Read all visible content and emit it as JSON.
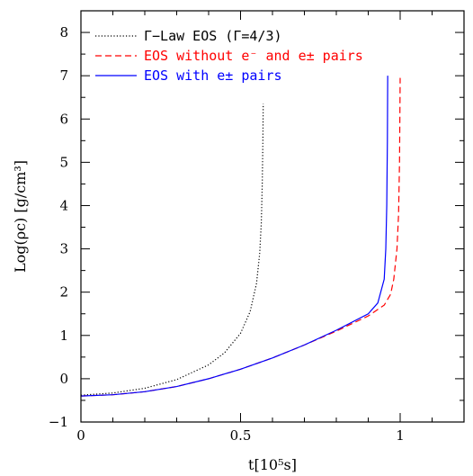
{
  "chart_data": {
    "type": "line",
    "xlabel": "t[10⁵s]",
    "ylabel": "Log(ρc) [g/cm³]",
    "xlim": [
      0,
      1.2
    ],
    "ylim": [
      -1,
      8.5
    ],
    "x_ticks": [
      0,
      0.5,
      1
    ],
    "x_tick_labels": [
      "0",
      "0.5",
      "1"
    ],
    "y_ticks": [
      -1,
      0,
      1,
      2,
      3,
      4,
      5,
      6,
      7,
      8
    ],
    "y_tick_labels": [
      "−1",
      "0",
      "1",
      "2",
      "3",
      "4",
      "5",
      "6",
      "7",
      "8"
    ],
    "grid": false,
    "legend_position": "top-left",
    "series": [
      {
        "name": "Γ−Law EOS (Γ=4/3)",
        "color": "#000000",
        "style": "dotted",
        "x": [
          0,
          0.1,
          0.2,
          0.3,
          0.4,
          0.45,
          0.5,
          0.53,
          0.55,
          0.56,
          0.565,
          0.568,
          0.57,
          0.571
        ],
        "y": [
          -0.38,
          -0.33,
          -0.22,
          -0.02,
          0.32,
          0.6,
          1.05,
          1.55,
          2.2,
          2.9,
          3.6,
          4.5,
          5.5,
          6.35
        ]
      },
      {
        "name": "EOS without e⁻ and  e± pairs",
        "color": "#ff0000",
        "style": "dashed",
        "x": [
          0,
          0.1,
          0.2,
          0.3,
          0.4,
          0.5,
          0.6,
          0.7,
          0.8,
          0.9,
          0.95,
          0.97,
          0.98,
          0.99,
          0.995,
          0.998,
          1.0
        ],
        "y": [
          -0.4,
          -0.37,
          -0.3,
          -0.18,
          0.0,
          0.22,
          0.48,
          0.78,
          1.1,
          1.45,
          1.7,
          1.95,
          2.3,
          3.0,
          3.8,
          5.0,
          6.95
        ]
      },
      {
        "name": "EOS with e± pairs",
        "color": "#0000ff",
        "style": "solid",
        "x": [
          0,
          0.1,
          0.2,
          0.3,
          0.4,
          0.5,
          0.6,
          0.7,
          0.8,
          0.9,
          0.93,
          0.95,
          0.955,
          0.958,
          0.96,
          0.961
        ],
        "y": [
          -0.4,
          -0.37,
          -0.3,
          -0.18,
          0.0,
          0.22,
          0.48,
          0.78,
          1.12,
          1.5,
          1.75,
          2.3,
          3.0,
          4.0,
          5.5,
          7.0
        ]
      }
    ]
  }
}
